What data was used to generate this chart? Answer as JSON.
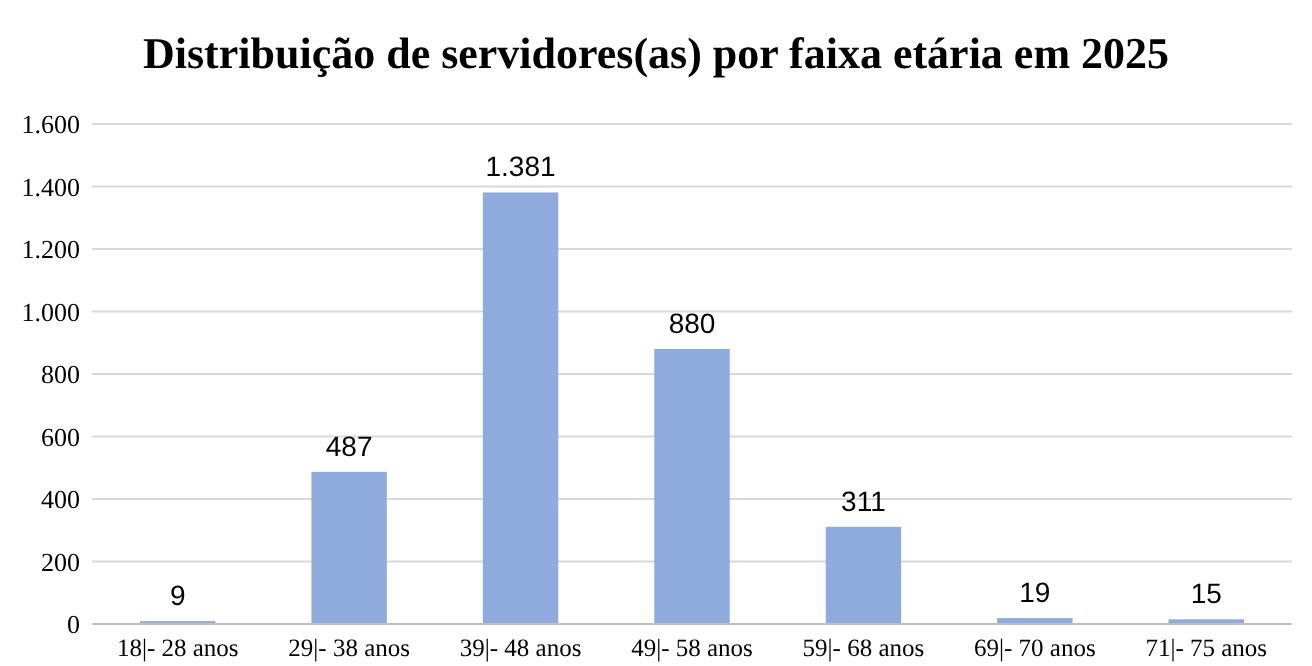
{
  "chart_data": {
    "type": "bar",
    "title": "Distribuição de servidores(as) por faixa etária em 2025",
    "categories": [
      "18|- 28 anos",
      "29|- 38 anos",
      "39|- 48 anos",
      "49|- 58 anos",
      "59|- 68 anos",
      "69|- 70 anos",
      "71|- 75 anos"
    ],
    "values": [
      9,
      487,
      1381,
      880,
      311,
      19,
      15
    ],
    "value_labels": [
      "9",
      "487",
      "1.381",
      "880",
      "311",
      "19",
      "15"
    ],
    "color": "#8faadc",
    "ylim": [
      0,
      1600
    ],
    "yticks": [
      0,
      200,
      400,
      600,
      800,
      {
        "value": 1000,
        "label": "1.000"
      },
      {
        "value": 1200,
        "label": "1.200"
      },
      {
        "value": 1400,
        "label": "1.400"
      },
      {
        "value": 1600,
        "label": "1.600"
      }
    ],
    "grid": "y"
  }
}
